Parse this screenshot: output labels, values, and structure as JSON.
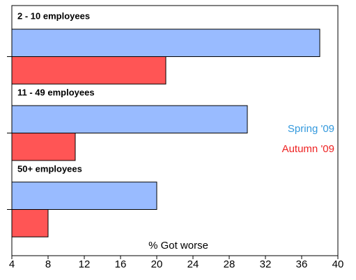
{
  "chart_data": {
    "type": "bar",
    "orientation": "horizontal",
    "xlabel": "% Got worse",
    "categories": [
      "2 - 10 employees",
      "11 - 49 employees",
      "50+ employees"
    ],
    "series": [
      {
        "name": "Spring '09",
        "color": "#99bbff",
        "label_color": "#3399dd",
        "values": [
          38,
          30,
          20
        ]
      },
      {
        "name": "Autumn '09",
        "color": "#ff5555",
        "label_color": "#ee2222",
        "values": [
          21,
          11,
          8
        ]
      }
    ],
    "xlim": [
      4,
      40
    ],
    "xticks": [
      4,
      8,
      12,
      16,
      20,
      24,
      28,
      32,
      36,
      40
    ],
    "legend": "right"
  }
}
